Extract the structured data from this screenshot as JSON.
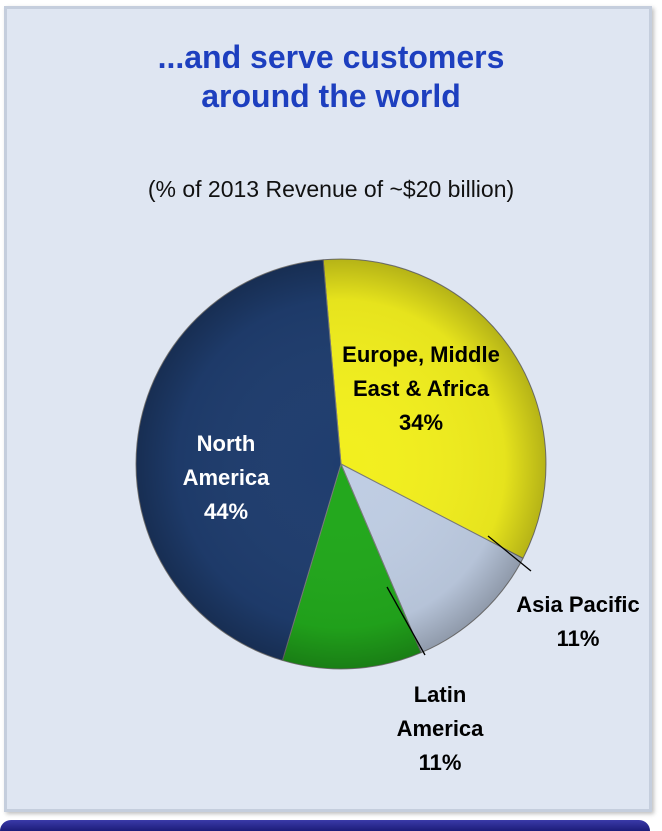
{
  "header": {
    "title_line1": "...and serve customers",
    "title_line2": "around the world",
    "subtitle": "(% of 2013 Revenue of ~$20 billion)"
  },
  "chart_data": {
    "type": "pie",
    "title": "...and serve customers around the world",
    "subtitle": "(% of 2013 Revenue of ~$20 billion)",
    "slices": [
      {
        "name": "Europe, Middle East & Africa",
        "label_lines": [
          "Europe, Middle",
          "East & Africa"
        ],
        "value": 34,
        "value_label": "34%",
        "color": "#f2ef1e"
      },
      {
        "name": "Asia Pacific",
        "label_lines": [
          "Asia Pacific"
        ],
        "value": 11,
        "value_label": "11%",
        "color": "#bfcde3"
      },
      {
        "name": "Latin America",
        "label_lines": [
          "Latin",
          "America"
        ],
        "value": 11,
        "value_label": "11%",
        "color": "#22a81c"
      },
      {
        "name": "North America",
        "label_lines": [
          "North",
          "America"
        ],
        "value": 44,
        "value_label": "44%",
        "color": "#1f3d6e"
      }
    ],
    "legend": "none"
  }
}
